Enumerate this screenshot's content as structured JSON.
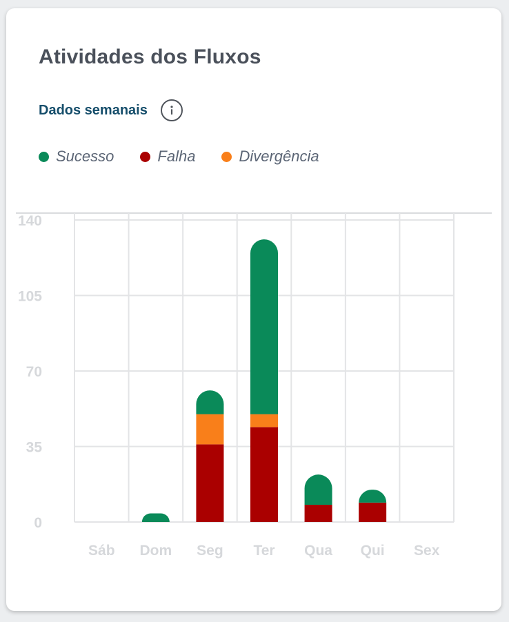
{
  "card": {
    "title": "Atividades dos Fluxos",
    "subtitle": "Dados semanais",
    "info_icon": "info-icon"
  },
  "legend": [
    {
      "label": "Sucesso",
      "color": "#0a8a59"
    },
    {
      "label": "Falha",
      "color": "#aa0000"
    },
    {
      "label": "Divergência",
      "color": "#f97f1a"
    }
  ],
  "chart_data": {
    "type": "bar",
    "stacked": true,
    "categories": [
      "Sáb",
      "Dom",
      "Seg",
      "Ter",
      "Qua",
      "Qui",
      "Sex"
    ],
    "series": [
      {
        "name": "Falha",
        "color": "#aa0000",
        "values": [
          0,
          0,
          36,
          44,
          8,
          9,
          0
        ]
      },
      {
        "name": "Divergência",
        "color": "#f97f1a",
        "values": [
          0,
          0,
          14,
          6,
          0,
          0,
          0
        ]
      },
      {
        "name": "Sucesso",
        "color": "#0a8a59",
        "values": [
          0,
          4,
          11,
          81,
          14,
          6,
          0
        ]
      }
    ],
    "yticks": [
      "0",
      "35",
      "70",
      "105",
      "140"
    ],
    "ylim": [
      0,
      140
    ],
    "grid": true,
    "legend_position": "top-left"
  }
}
